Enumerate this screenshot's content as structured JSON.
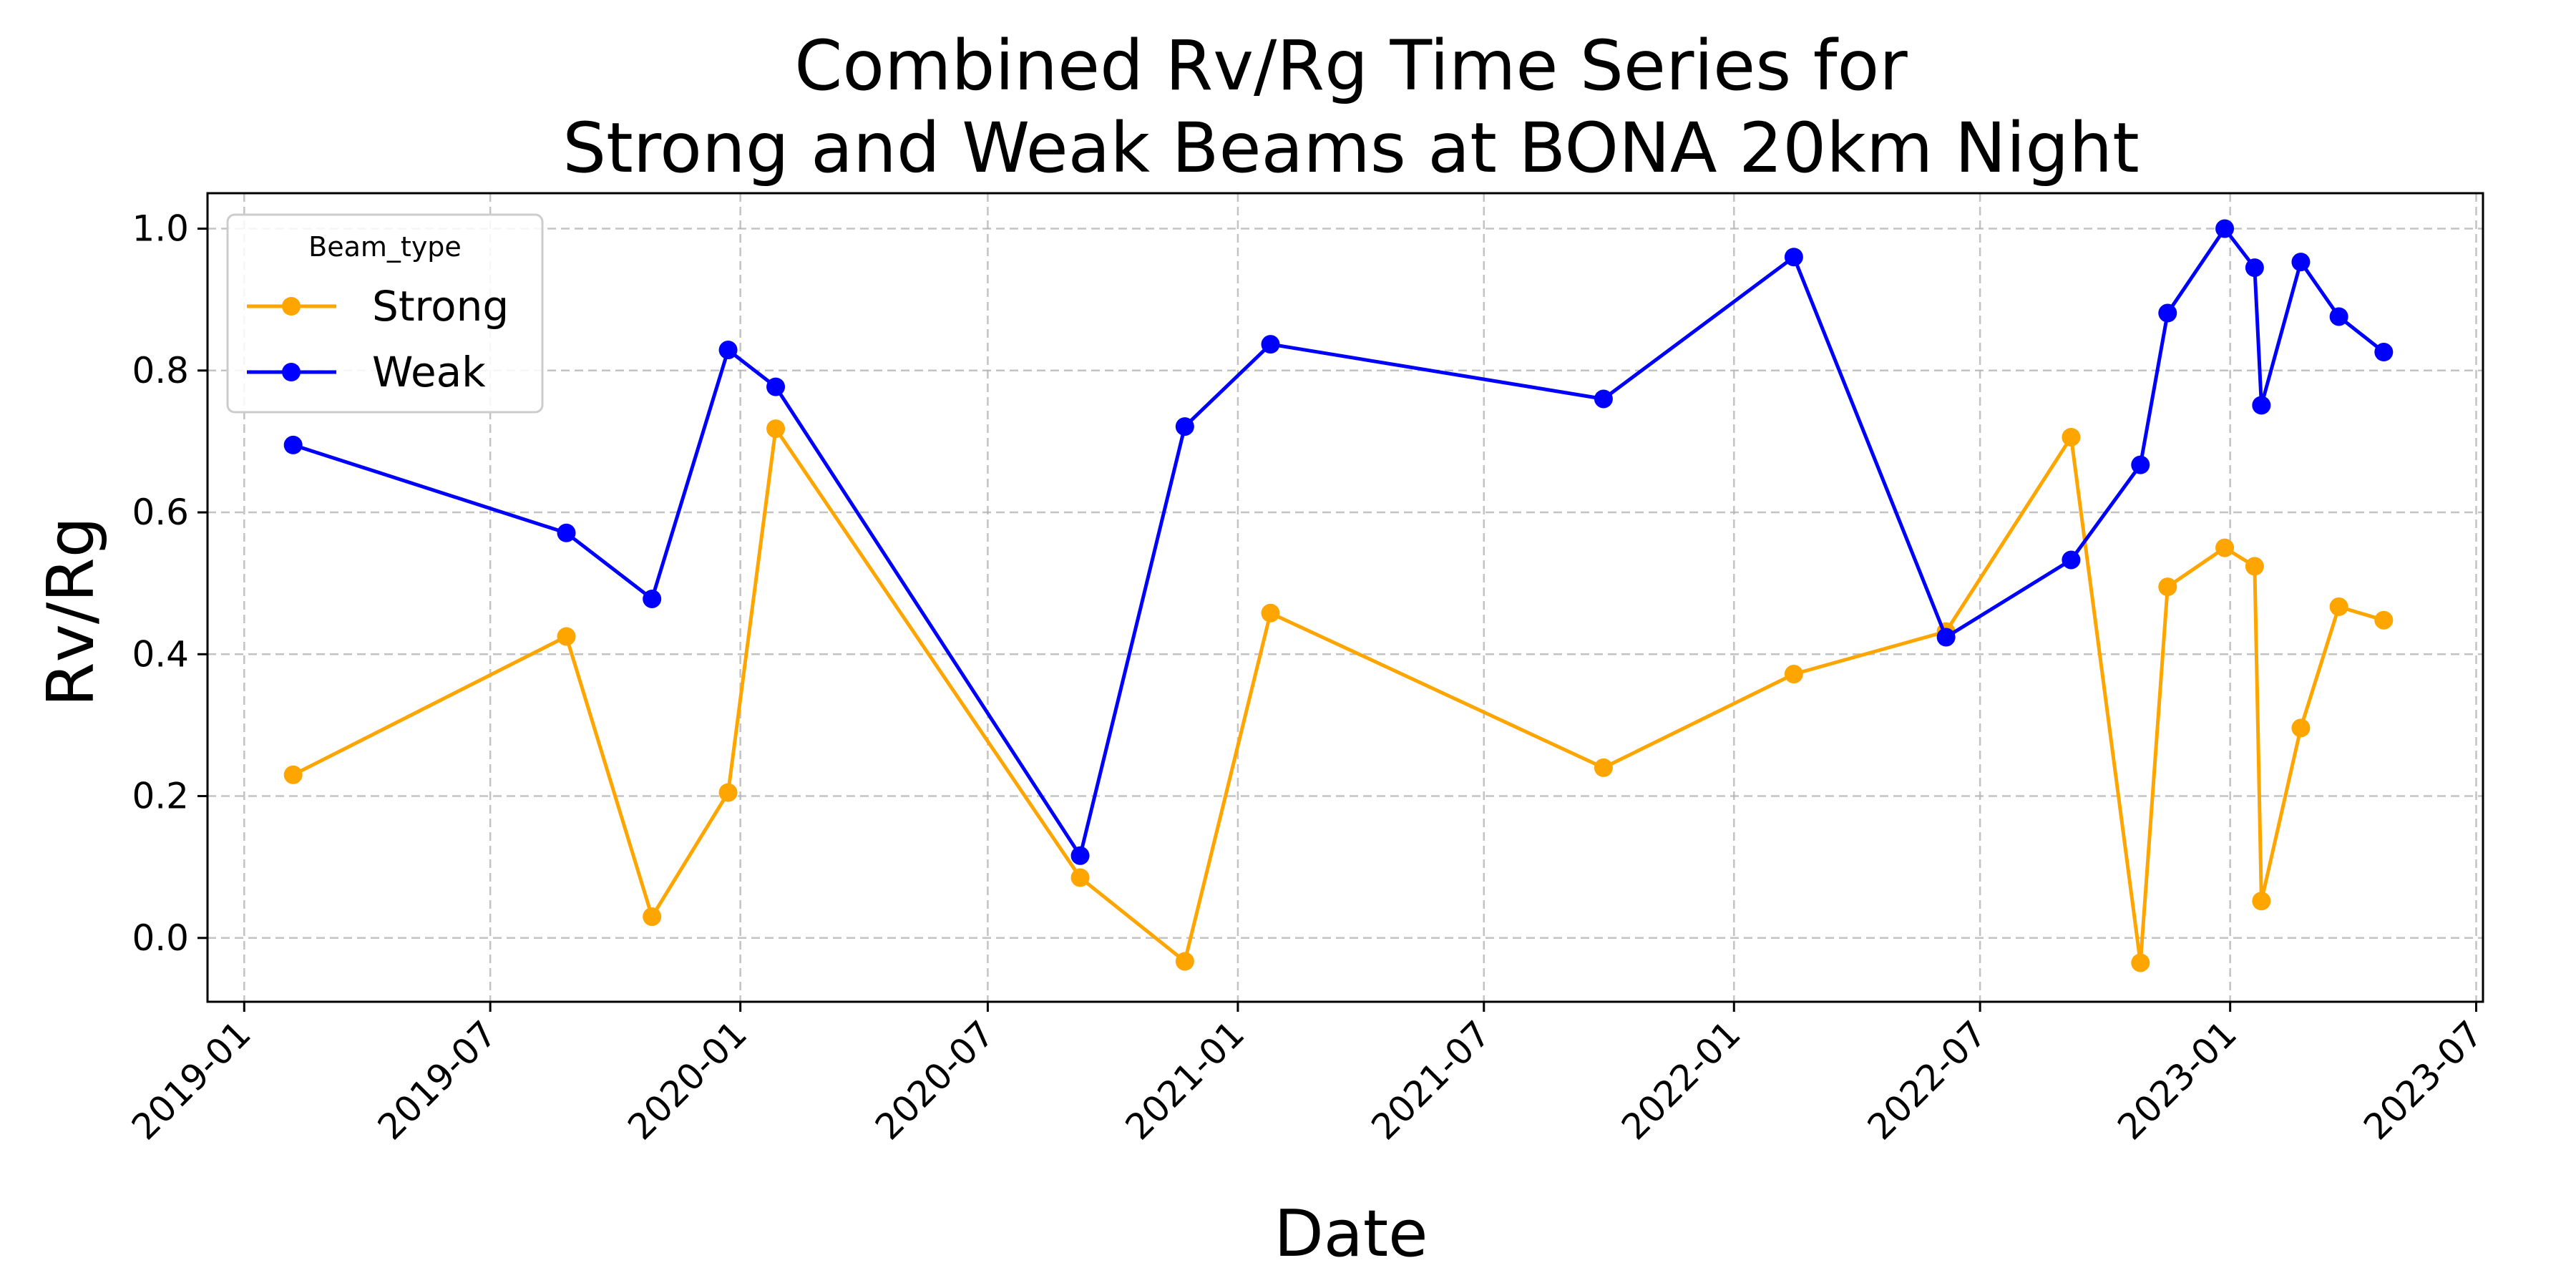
{
  "chart_data": {
    "type": "line",
    "title_line1": "Combined Rv/Rg Time Series for",
    "title_line2": "Strong and Weak Beams at BONA 20km Night",
    "xlabel": "Date",
    "ylabel": "Rv/Rg",
    "xlim": [
      "2018-12-05",
      "2023-07-06"
    ],
    "ylim": [
      -0.09,
      1.05
    ],
    "grid": true,
    "x_ticks": [
      "2019-01",
      "2019-07",
      "2020-01",
      "2020-07",
      "2021-01",
      "2021-07",
      "2022-01",
      "2022-07",
      "2023-01",
      "2023-07"
    ],
    "y_ticks": [
      "0.0",
      "0.2",
      "0.4",
      "0.6",
      "0.8",
      "1.0"
    ],
    "legend": {
      "title": "Beam_type",
      "position": "upper left"
    },
    "series": [
      {
        "name": "Strong",
        "color": "#ffa500",
        "points": [
          {
            "x": "2019-02-06",
            "y": 0.23
          },
          {
            "x": "2019-08-26",
            "y": 0.425
          },
          {
            "x": "2019-10-28",
            "y": 0.03
          },
          {
            "x": "2019-12-23",
            "y": 0.205
          },
          {
            "x": "2020-01-27",
            "y": 0.718
          },
          {
            "x": "2020-09-07",
            "y": 0.085
          },
          {
            "x": "2020-11-23",
            "y": -0.033
          },
          {
            "x": "2021-01-25",
            "y": 0.458
          },
          {
            "x": "2021-09-27",
            "y": 0.24
          },
          {
            "x": "2022-02-14",
            "y": 0.372
          },
          {
            "x": "2022-06-06",
            "y": 0.432
          },
          {
            "x": "2022-09-06",
            "y": 0.706
          },
          {
            "x": "2022-10-27",
            "y": -0.035
          },
          {
            "x": "2022-11-16",
            "y": 0.495
          },
          {
            "x": "2022-12-28",
            "y": 0.55
          },
          {
            "x": "2023-01-19",
            "y": 0.524
          },
          {
            "x": "2023-01-24",
            "y": 0.052
          },
          {
            "x": "2023-02-22",
            "y": 0.296
          },
          {
            "x": "2023-03-22",
            "y": 0.467
          },
          {
            "x": "2023-04-24",
            "y": 0.448
          }
        ]
      },
      {
        "name": "Weak",
        "color": "#0000ff",
        "points": [
          {
            "x": "2019-02-06",
            "y": 0.695
          },
          {
            "x": "2019-08-26",
            "y": 0.571
          },
          {
            "x": "2019-10-28",
            "y": 0.478
          },
          {
            "x": "2019-12-23",
            "y": 0.829
          },
          {
            "x": "2020-01-27",
            "y": 0.777
          },
          {
            "x": "2020-09-07",
            "y": 0.116
          },
          {
            "x": "2020-11-23",
            "y": 0.721
          },
          {
            "x": "2021-01-25",
            "y": 0.837
          },
          {
            "x": "2021-09-27",
            "y": 0.76
          },
          {
            "x": "2022-02-14",
            "y": 0.96
          },
          {
            "x": "2022-06-06",
            "y": 0.424
          },
          {
            "x": "2022-09-06",
            "y": 0.533
          },
          {
            "x": "2022-10-27",
            "y": 0.667
          },
          {
            "x": "2022-11-16",
            "y": 0.881
          },
          {
            "x": "2022-12-28",
            "y": 1.0
          },
          {
            "x": "2023-01-19",
            "y": 0.945
          },
          {
            "x": "2023-01-24",
            "y": 0.751
          },
          {
            "x": "2023-02-22",
            "y": 0.953
          },
          {
            "x": "2023-03-22",
            "y": 0.876
          },
          {
            "x": "2023-04-24",
            "y": 0.826
          }
        ]
      }
    ]
  }
}
